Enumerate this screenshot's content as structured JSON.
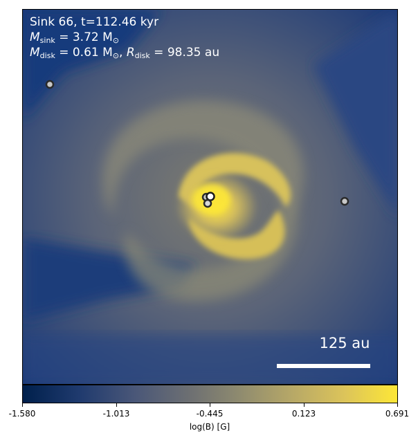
{
  "header": {
    "line1": "Sink 66, t=112.46 kyr",
    "sink_mass_label": "M",
    "sink_mass_sub": "sink",
    "sink_mass_value": " = 3.72 M",
    "sink_mass_sun": "⊙",
    "disk_mass_label": "M",
    "disk_mass_sub": "disk",
    "disk_mass_value": " = 0.61 M",
    "disk_mass_sun": "⊙",
    "disk_radius_prefix": ", ",
    "disk_radius_label": "R",
    "disk_radius_sub": "disk",
    "disk_radius_value": " = 98.35 au"
  },
  "scalebar": {
    "label": "125 au"
  },
  "colorbar": {
    "ticks": [
      "-1.580",
      "-1.013",
      "-0.445",
      "0.123",
      "0.691"
    ],
    "label": "log(B) [G]"
  },
  "colors": {
    "low": "#00204c",
    "mid": "#6e7072",
    "high": "#fde737"
  }
}
